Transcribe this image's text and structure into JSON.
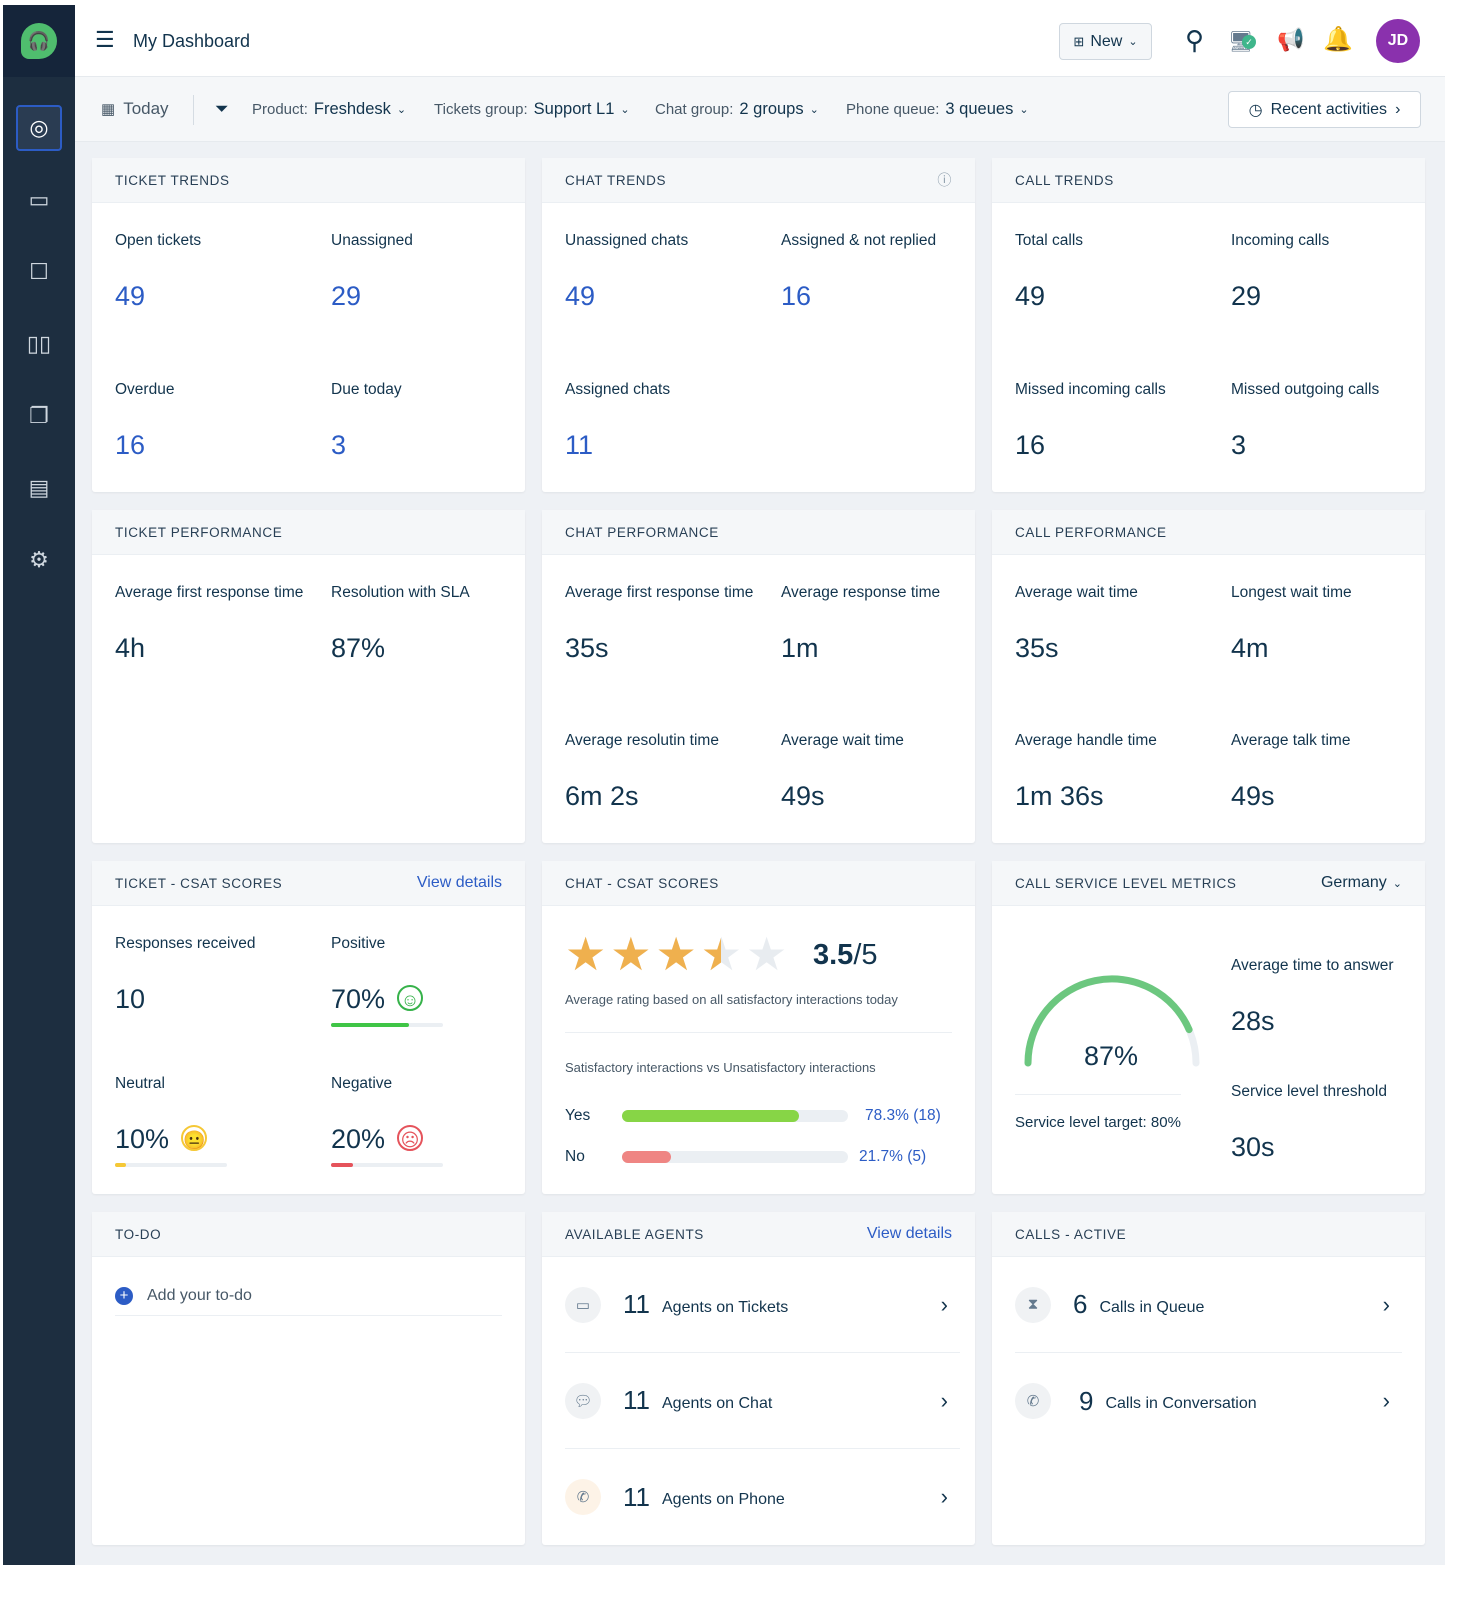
{
  "header": {
    "title": "My Dashboard",
    "new_label": "New",
    "avatar": "JD",
    "avatar_color": "#8a31ad"
  },
  "filters": {
    "date": "Today",
    "product_label": "Product:",
    "product": "Freshdesk",
    "tickets_group_label": "Tickets group:",
    "tickets_group": "Support L1",
    "chat_group_label": "Chat group:",
    "chat_group": "2 groups",
    "phone_queue_label": "Phone queue:",
    "phone_queue": "3 queues",
    "recent": "Recent activities"
  },
  "sidebar": {
    "items": [
      "dashboard-icon",
      "tickets-icon",
      "contacts-icon",
      "knowledge-base-icon",
      "chat-icon",
      "reports-icon",
      "settings-icon"
    ]
  },
  "ticket_trends": {
    "title": "TICKET TRENDS",
    "metrics": [
      {
        "label": "Open tickets",
        "value": "49"
      },
      {
        "label": "Unassigned",
        "value": "29"
      },
      {
        "label": "Overdue",
        "value": "16"
      },
      {
        "label": "Due today",
        "value": "3"
      }
    ]
  },
  "chat_trends": {
    "title": "CHAT TRENDS",
    "metrics": [
      {
        "label": "Unassigned chats",
        "value": "49"
      },
      {
        "label": "Assigned & not replied",
        "value": "16"
      },
      {
        "label": "Assigned chats",
        "value": "11"
      }
    ]
  },
  "call_trends": {
    "title": "CALL TRENDS",
    "metrics": [
      {
        "label": "Total calls",
        "value": "49"
      },
      {
        "label": "Incoming calls",
        "value": "29"
      },
      {
        "label": "Missed incoming calls",
        "value": "16"
      },
      {
        "label": "Missed outgoing calls",
        "value": "3"
      }
    ]
  },
  "ticket_perf": {
    "title": "TICKET PERFORMANCE",
    "metrics": [
      {
        "label": "Average first response time",
        "value": "4h"
      },
      {
        "label": "Resolution with SLA",
        "value": "87%"
      }
    ]
  },
  "chat_perf": {
    "title": "CHAT PERFORMANCE",
    "metrics": [
      {
        "label": "Average first response time",
        "value": "35s"
      },
      {
        "label": "Average response time",
        "value": "1m"
      },
      {
        "label": "Average resolutin time",
        "value": "6m 2s"
      },
      {
        "label": "Average wait time",
        "value": "49s"
      }
    ]
  },
  "call_perf": {
    "title": "CALL PERFORMANCE",
    "metrics": [
      {
        "label": "Average wait time",
        "value": "35s"
      },
      {
        "label": "Longest wait time",
        "value": "4m"
      },
      {
        "label": "Average handle time",
        "value": "1m 36s"
      },
      {
        "label": "Average talk time",
        "value": "49s"
      }
    ]
  },
  "ticket_csat": {
    "title": "TICKET - CSAT SCORES",
    "link": "View details",
    "responses_label": "Responses received",
    "responses": "10",
    "positive_label": "Positive",
    "positive": "70%",
    "positive_pct": 70,
    "neutral_label": "Neutral",
    "neutral": "10%",
    "neutral_pct": 10,
    "negative_label": "Negative",
    "negative": "20%",
    "negative_pct": 20
  },
  "chat_csat": {
    "title": "CHAT - CSAT SCORES",
    "rating": "3.5",
    "rating_max": "/5",
    "rating_value": 3.5,
    "rating_caption": "Average rating based on all satisfactory interactions today",
    "compare_caption": "Satisfactory interactions vs Unsatisfactory interactions",
    "yes_label": "Yes",
    "yes_value": "78.3% (18)",
    "yes_pct": 78.3,
    "no_label": "No",
    "no_value": "21.7% (5)",
    "no_pct": 21.7
  },
  "call_sl": {
    "title": "CALL SERVICE LEVEL METRICS",
    "region": "Germany",
    "gauge": "87%",
    "gauge_pct": 87,
    "target": "Service level target:  80%",
    "avg_answer_label": "Average time to answer",
    "avg_answer": "28s",
    "threshold_label": "Service level threshold",
    "threshold": "30s"
  },
  "todo": {
    "title": "TO-DO",
    "add": "Add your to-do"
  },
  "agents": {
    "title": "AVAILABLE AGENTS",
    "link": "View details",
    "rows": [
      {
        "count": "11",
        "label": "Agents on Tickets"
      },
      {
        "count": "11",
        "label": "Agents on Chat"
      },
      {
        "count": "11",
        "label": "Agents on Phone"
      }
    ]
  },
  "calls_active": {
    "title": "CALLS - ACTIVE",
    "rows": [
      {
        "count": "6",
        "label": "Calls in Queue"
      },
      {
        "count": "9",
        "label": "Calls in Conversation"
      }
    ]
  }
}
